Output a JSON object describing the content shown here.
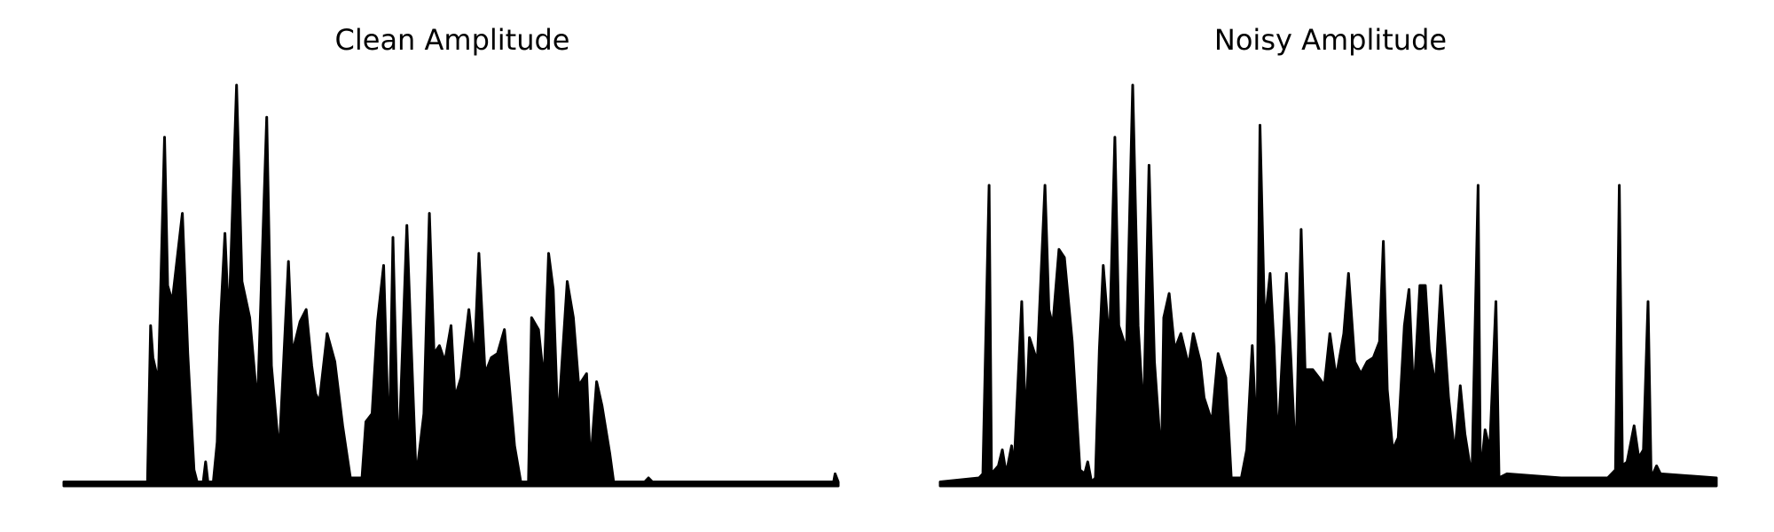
{
  "chart_data": [
    {
      "type": "area",
      "title": "Clean Amplitude",
      "xlabel": "",
      "ylabel": "",
      "ylim": [
        0,
        1
      ],
      "axes_visible": false,
      "grid": false,
      "color": "#000000",
      "x_range": [
        0,
        100
      ],
      "envelope": [
        [
          0,
          0.01
        ],
        [
          10.8,
          0.01
        ],
        [
          11.2,
          0.4
        ],
        [
          11.5,
          0.32
        ],
        [
          12.2,
          0.26
        ],
        [
          13.0,
          0.87
        ],
        [
          13.4,
          0.5
        ],
        [
          14.0,
          0.46
        ],
        [
          15.3,
          0.68
        ],
        [
          16.0,
          0.33
        ],
        [
          16.8,
          0.04
        ],
        [
          17.2,
          0.01
        ],
        [
          18.0,
          0.01
        ],
        [
          18.3,
          0.06
        ],
        [
          18.6,
          0.01
        ],
        [
          19.3,
          0.01
        ],
        [
          19.8,
          0.11
        ],
        [
          20.2,
          0.4
        ],
        [
          20.8,
          0.63
        ],
        [
          21.3,
          0.4
        ],
        [
          22.3,
          1.0
        ],
        [
          23.0,
          0.51
        ],
        [
          24.0,
          0.42
        ],
        [
          25.0,
          0.2
        ],
        [
          26.2,
          0.92
        ],
        [
          26.8,
          0.3
        ],
        [
          27.8,
          0.08
        ],
        [
          29.0,
          0.56
        ],
        [
          29.5,
          0.33
        ],
        [
          30.5,
          0.41
        ],
        [
          31.3,
          0.44
        ],
        [
          32.0,
          0.3
        ],
        [
          32.5,
          0.23
        ],
        [
          33.0,
          0.21
        ],
        [
          34.0,
          0.38
        ],
        [
          35.0,
          0.31
        ],
        [
          36.0,
          0.15
        ],
        [
          37.0,
          0.02
        ],
        [
          38.5,
          0.02
        ],
        [
          39.0,
          0.16
        ],
        [
          39.8,
          0.18
        ],
        [
          40.5,
          0.41
        ],
        [
          41.3,
          0.55
        ],
        [
          42.0,
          0.08
        ],
        [
          42.5,
          0.62
        ],
        [
          43.2,
          0.05
        ],
        [
          44.3,
          0.65
        ],
        [
          44.8,
          0.38
        ],
        [
          45.5,
          0.02
        ],
        [
          46.5,
          0.18
        ],
        [
          47.2,
          0.68
        ],
        [
          47.8,
          0.33
        ],
        [
          48.5,
          0.35
        ],
        [
          49.2,
          0.31
        ],
        [
          50.0,
          0.4
        ],
        [
          50.5,
          0.22
        ],
        [
          51.3,
          0.27
        ],
        [
          52.3,
          0.44
        ],
        [
          53.0,
          0.31
        ],
        [
          53.6,
          0.58
        ],
        [
          54.4,
          0.28
        ],
        [
          55.2,
          0.32
        ],
        [
          56.0,
          0.33
        ],
        [
          56.9,
          0.39
        ],
        [
          58.2,
          0.1
        ],
        [
          59.0,
          0.01
        ],
        [
          60.0,
          0.01
        ],
        [
          60.4,
          0.42
        ],
        [
          61.3,
          0.39
        ],
        [
          62.0,
          0.26
        ],
        [
          62.6,
          0.58
        ],
        [
          63.2,
          0.49
        ],
        [
          63.8,
          0.15
        ],
        [
          65.0,
          0.51
        ],
        [
          65.8,
          0.42
        ],
        [
          66.5,
          0.25
        ],
        [
          67.5,
          0.28
        ],
        [
          68.0,
          0.05
        ],
        [
          68.8,
          0.26
        ],
        [
          69.5,
          0.2
        ],
        [
          70.5,
          0.08
        ],
        [
          71.0,
          0.01
        ],
        [
          75.0,
          0.01
        ],
        [
          75.5,
          0.02
        ],
        [
          76.0,
          0.01
        ],
        [
          99.4,
          0.01
        ],
        [
          99.6,
          0.03
        ],
        [
          100.0,
          0.01
        ]
      ]
    },
    {
      "type": "area",
      "title": "Noisy Amplitude",
      "xlabel": "",
      "ylabel": "",
      "ylim": [
        0,
        1
      ],
      "axes_visible": false,
      "grid": false,
      "color": "#000000",
      "x_range": [
        0,
        100
      ],
      "envelope": [
        [
          0,
          0.01
        ],
        [
          5.0,
          0.02
        ],
        [
          5.5,
          0.03
        ],
        [
          6.3,
          0.75
        ],
        [
          6.6,
          0.03
        ],
        [
          7.5,
          0.05
        ],
        [
          8.0,
          0.09
        ],
        [
          8.5,
          0.03
        ],
        [
          9.2,
          0.1
        ],
        [
          9.5,
          0.04
        ],
        [
          10.5,
          0.46
        ],
        [
          11.0,
          0.15
        ],
        [
          11.5,
          0.37
        ],
        [
          12.5,
          0.31
        ],
        [
          13.5,
          0.75
        ],
        [
          14.0,
          0.44
        ],
        [
          14.5,
          0.4
        ],
        [
          15.3,
          0.59
        ],
        [
          16.0,
          0.57
        ],
        [
          17.0,
          0.36
        ],
        [
          18.0,
          0.04
        ],
        [
          18.6,
          0.03
        ],
        [
          19.0,
          0.06
        ],
        [
          19.5,
          0.01
        ],
        [
          20.0,
          0.02
        ],
        [
          20.5,
          0.34
        ],
        [
          21.0,
          0.55
        ],
        [
          21.8,
          0.35
        ],
        [
          22.5,
          0.87
        ],
        [
          23.0,
          0.4
        ],
        [
          24.0,
          0.34
        ],
        [
          24.8,
          1.0
        ],
        [
          25.5,
          0.4
        ],
        [
          26.2,
          0.17
        ],
        [
          26.9,
          0.8
        ],
        [
          27.6,
          0.31
        ],
        [
          28.5,
          0.06
        ],
        [
          28.8,
          0.42
        ],
        [
          29.5,
          0.48
        ],
        [
          30.2,
          0.34
        ],
        [
          31.0,
          0.38
        ],
        [
          32.0,
          0.3
        ],
        [
          32.6,
          0.38
        ],
        [
          33.5,
          0.31
        ],
        [
          34.0,
          0.22
        ],
        [
          35.0,
          0.16
        ],
        [
          35.8,
          0.33
        ],
        [
          36.8,
          0.27
        ],
        [
          37.5,
          0.02
        ],
        [
          38.8,
          0.02
        ],
        [
          39.5,
          0.09
        ],
        [
          40.2,
          0.35
        ],
        [
          40.8,
          0.1
        ],
        [
          41.2,
          0.9
        ],
        [
          41.8,
          0.4
        ],
        [
          42.5,
          0.53
        ],
        [
          43.0,
          0.35
        ],
        [
          43.5,
          0.1
        ],
        [
          44.6,
          0.53
        ],
        [
          45.2,
          0.31
        ],
        [
          45.8,
          0.05
        ],
        [
          46.5,
          0.64
        ],
        [
          47.0,
          0.29
        ],
        [
          48.0,
          0.29
        ],
        [
          48.8,
          0.27
        ],
        [
          49.5,
          0.25
        ],
        [
          50.2,
          0.38
        ],
        [
          51.0,
          0.27
        ],
        [
          52.0,
          0.38
        ],
        [
          52.6,
          0.53
        ],
        [
          53.4,
          0.31
        ],
        [
          54.2,
          0.28
        ],
        [
          55.0,
          0.31
        ],
        [
          55.8,
          0.32
        ],
        [
          56.6,
          0.36
        ],
        [
          57.1,
          0.61
        ],
        [
          57.6,
          0.24
        ],
        [
          58.3,
          0.09
        ],
        [
          59.0,
          0.12
        ],
        [
          59.8,
          0.4
        ],
        [
          60.4,
          0.49
        ],
        [
          61.0,
          0.22
        ],
        [
          61.8,
          0.5
        ],
        [
          62.5,
          0.5
        ],
        [
          63.0,
          0.34
        ],
        [
          63.8,
          0.25
        ],
        [
          64.5,
          0.5
        ],
        [
          65.5,
          0.22
        ],
        [
          66.3,
          0.08
        ],
        [
          67.0,
          0.25
        ],
        [
          67.6,
          0.13
        ],
        [
          68.5,
          0.02
        ],
        [
          69.3,
          0.75
        ],
        [
          69.6,
          0.02
        ],
        [
          70.2,
          0.14
        ],
        [
          70.8,
          0.09
        ],
        [
          71.6,
          0.46
        ],
        [
          72.0,
          0.02
        ],
        [
          73.0,
          0.03
        ],
        [
          80.0,
          0.02
        ],
        [
          86.0,
          0.02
        ],
        [
          87.0,
          0.04
        ],
        [
          87.5,
          0.75
        ],
        [
          87.9,
          0.05
        ],
        [
          88.5,
          0.06
        ],
        [
          89.4,
          0.15
        ],
        [
          90.0,
          0.07
        ],
        [
          90.6,
          0.09
        ],
        [
          91.2,
          0.46
        ],
        [
          91.6,
          0.02
        ],
        [
          92.3,
          0.05
        ],
        [
          92.8,
          0.03
        ],
        [
          100.0,
          0.02
        ]
      ]
    }
  ]
}
